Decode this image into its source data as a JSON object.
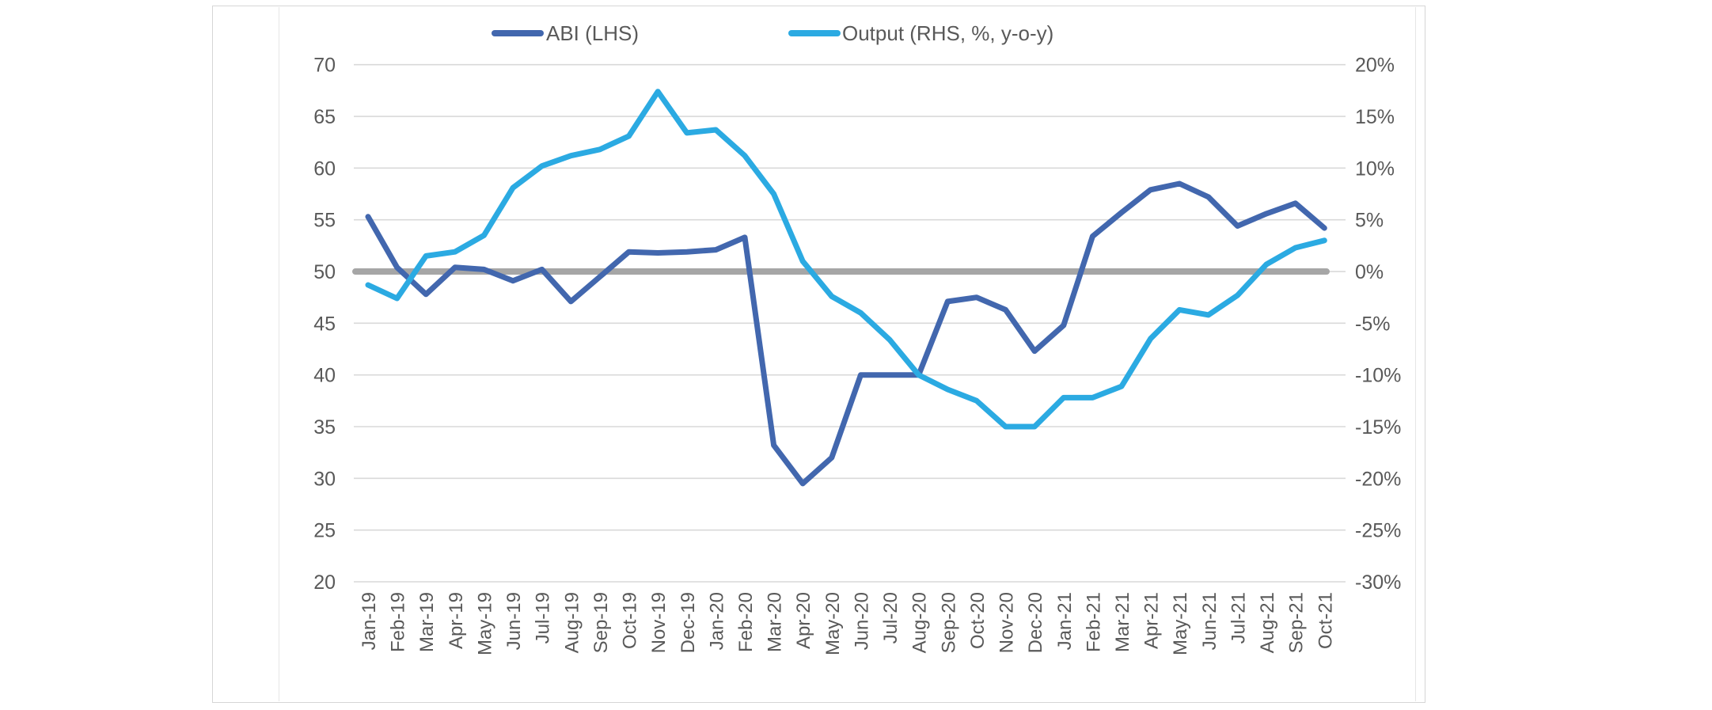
{
  "chart_data": {
    "type": "line",
    "title": "",
    "categories": [
      "Jan-19",
      "Feb-19",
      "Mar-19",
      "Apr-19",
      "May-19",
      "Jun-19",
      "Jul-19",
      "Aug-19",
      "Sep-19",
      "Oct-19",
      "Nov-19",
      "Dec-19",
      "Jan-20",
      "Feb-20",
      "Mar-20",
      "Apr-20",
      "May-20",
      "Jun-20",
      "Jul-20",
      "Aug-20",
      "Sep-20",
      "Oct-20",
      "Nov-20",
      "Dec-20",
      "Jan-21",
      "Feb-21",
      "Mar-21",
      "Apr-21",
      "May-21",
      "Jun-21",
      "Jul-21",
      "Aug-21",
      "Sep-21",
      "Oct-21"
    ],
    "series": [
      {
        "name": "ABI (LHS)",
        "axis": "left",
        "color": "#4267AE",
        "values": [
          55.3,
          50.4,
          47.8,
          50.4,
          50.2,
          49.1,
          50.2,
          47.1,
          49.5,
          51.9,
          51.8,
          51.9,
          52.1,
          53.3,
          33.2,
          29.5,
          32.0,
          40.0,
          40.0,
          40.0,
          47.1,
          47.5,
          46.3,
          42.3,
          44.8,
          53.4,
          55.7,
          57.9,
          58.5,
          57.2,
          54.4,
          55.6,
          56.6,
          54.2
        ]
      },
      {
        "name": "Output (RHS, %, y-o-y)",
        "axis": "right",
        "color": "#2BAAE2",
        "values": [
          -1.3,
          -2.6,
          1.5,
          1.9,
          3.5,
          8.1,
          10.2,
          11.2,
          11.8,
          13.1,
          17.4,
          13.4,
          13.7,
          11.2,
          7.5,
          1.0,
          -2.4,
          -4.0,
          -6.6,
          -10.0,
          -11.4,
          -12.5,
          -15.0,
          -15.0,
          -12.2,
          -12.2,
          -11.1,
          -6.5,
          -3.7,
          -4.2,
          -2.3,
          0.7,
          2.3,
          3.0
        ]
      }
    ],
    "left_axis": {
      "min": 20,
      "max": 70,
      "tick_step": 5,
      "ticks": [
        "70",
        "65",
        "60",
        "55",
        "50",
        "45",
        "40",
        "35",
        "30",
        "25",
        "20"
      ]
    },
    "right_axis": {
      "min": -30,
      "max": 20,
      "tick_step": 5,
      "ticks": [
        "20%",
        "15%",
        "10%",
        "5%",
        "0%",
        "-5%",
        "-10%",
        "-15%",
        "-20%",
        "-25%",
        "-30%"
      ]
    },
    "zero_line": {
      "left_value": 50,
      "right_value": 0,
      "color": "#a6a6a6"
    },
    "grid": true,
    "gridline_color": "#d9d9d9",
    "axis_text_color": "#595959",
    "legend_position": "top",
    "legend": [
      {
        "label": "ABI (LHS)",
        "color": "#4267AE"
      },
      {
        "label": "Output (RHS, %, y-o-y)",
        "color": "#2BAAE2"
      }
    ]
  }
}
